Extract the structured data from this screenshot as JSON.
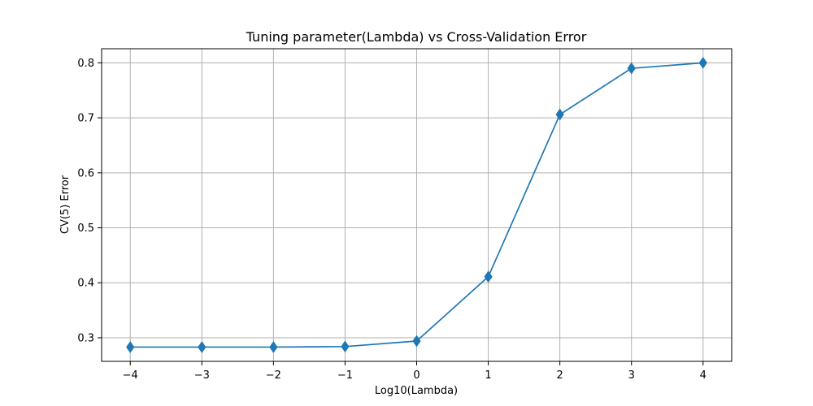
{
  "chart_data": {
    "type": "line",
    "title": "Tuning parameter(Lambda) vs Cross-Validation Error",
    "xlabel": "Log10(Lambda)",
    "ylabel": "CV(5) Error",
    "x": [
      -4,
      -3,
      -2,
      -1,
      0,
      1,
      2,
      3,
      4
    ],
    "series": [
      {
        "values": [
          0.283,
          0.283,
          0.283,
          0.284,
          0.294,
          0.411,
          0.706,
          0.79,
          0.8
        ],
        "color": "#1f77b4",
        "marker": "diamond"
      }
    ],
    "xticks": [
      -4,
      -3,
      -2,
      -1,
      0,
      1,
      2,
      3,
      4
    ],
    "xtick_labels": [
      "−4",
      "−3",
      "−2",
      "−1",
      "0",
      "1",
      "2",
      "3",
      "4"
    ],
    "yticks": [
      0.3,
      0.4,
      0.5,
      0.6,
      0.7,
      0.8
    ],
    "ytick_labels": [
      "0.3",
      "0.4",
      "0.5",
      "0.6",
      "0.7",
      "0.8"
    ],
    "xlim": [
      -4.4,
      4.4
    ],
    "ylim": [
      0.2571,
      0.8257
    ],
    "grid": true,
    "legend": false
  }
}
